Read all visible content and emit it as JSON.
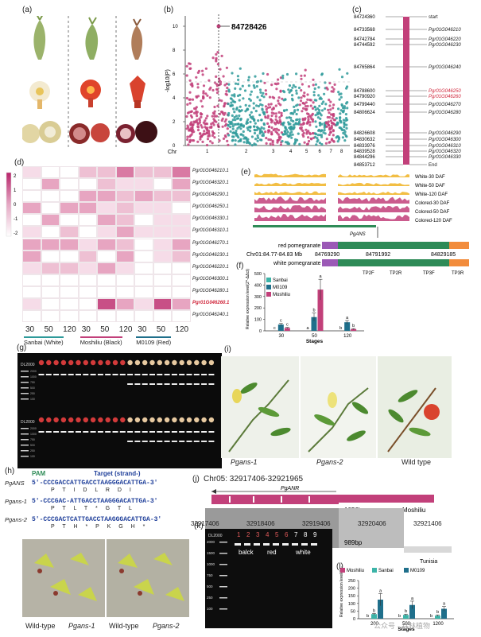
{
  "panels": {
    "a": "(a)",
    "b": "(b)",
    "c": "(c)",
    "d": "(d)",
    "e": "(e)",
    "f": "(f)",
    "g": "(g)",
    "h": "(h)",
    "i": "(i)",
    "j": "(j)",
    "k": "(k)",
    "l": "(l)"
  },
  "manhattan": {
    "peak_label": "84728426",
    "ylabel": "-log10(P)",
    "xlabel": "Chr",
    "yticks": [
      "0",
      "2",
      "4",
      "6",
      "8",
      "10"
    ],
    "chromosomes": [
      "1",
      "2",
      "3",
      "4",
      "5",
      "6",
      "7",
      "8"
    ],
    "colors": {
      "odd": "#c2407a",
      "even": "#2e9a9a"
    }
  },
  "gene_map": {
    "positions": [
      "84724360",
      "84733568",
      "84742784",
      "84744592",
      "84765864",
      "84788600",
      "84790920",
      "84799440",
      "84806624",
      "84826608",
      "84830632",
      "84833976",
      "84839528",
      "84844296",
      "84853712"
    ],
    "labels": [
      "start",
      "Pgr01G046210",
      "Pgr01G046220",
      "Pgr01G046230",
      "Pgr01G046240",
      "Pgr01G046250",
      "Pgr01G046260",
      "Pgr01G046270",
      "Pgr01G046280",
      "Pgr01G046290",
      "Pgr01G046300",
      "Pgr01G046310",
      "Pgr01G046320",
      "Pgr01G046330",
      "End"
    ],
    "red_index": [
      5,
      6
    ]
  },
  "heatmap": {
    "scale_ticks": [
      "2",
      "1",
      "0",
      "-1",
      "-2"
    ],
    "genes": [
      "Pgr01G046210.1",
      "Pgr01G046320.1",
      "Pgr01G046290.1",
      "Pgr01G046250.1",
      "Pgr01G046330.1",
      "Pgr01G046310.1",
      "Pgr01G046270.1",
      "Pgr01G046230.1",
      "Pgr01G046220.1",
      "Pgr01G046300.1",
      "Pgr01G046280.1",
      "Pgr01G046260.1",
      "Pgr01G046240.1"
    ],
    "highlight_gene": "Pgr01G046260.1",
    "stages": [
      "30",
      "50",
      "120",
      "30",
      "50",
      "120",
      "30",
      "50",
      "120"
    ],
    "groups": [
      "Sanbai (White)",
      "Moshiliu (Black)",
      "M0109 (Red)"
    ]
  },
  "tracks": {
    "names": [
      "White-30 DAF",
      "White-50 DAF",
      "White-120 DAF",
      "Colored-30 DAF",
      "Colored-50 DAF",
      "Colored-120 DAF"
    ],
    "gene": "PgANS",
    "red_label": "red pomegranate",
    "white_label": "white pomegranate",
    "coords": "Chr01:84.77-84.83 Mb",
    "pos1": "84769290",
    "pos2": "84791992",
    "pos3": "84829185",
    "primers": [
      "TP2F",
      "TP2R",
      "TP3F",
      "TP3R"
    ]
  },
  "chart_data": [
    {
      "type": "bar",
      "categories": [
        "30",
        "50",
        "120"
      ],
      "series": [
        {
          "name": "Sanbai",
          "values": [
            0,
            0,
            0
          ]
        },
        {
          "name": "M0109",
          "values": [
            55,
            120,
            75
          ]
        },
        {
          "name": "Moshiliu",
          "values": [
            25,
            360,
            15
          ]
        }
      ],
      "errors": [
        [
          0,
          0,
          0
        ],
        [
          10,
          35,
          15
        ],
        [
          5,
          90,
          5
        ]
      ],
      "letters": [
        [
          "c",
          "a",
          "b"
        ],
        [
          "c",
          "b",
          "a"
        ],
        [
          "c",
          "a",
          "b"
        ]
      ],
      "xlabel": "Stages",
      "ylabel": "Relative expression level(2^-ΔΔct)",
      "yticks": [
        "0",
        "100",
        "200",
        "300",
        "400",
        "500"
      ],
      "ylim": [
        0,
        500
      ],
      "colors": [
        "#3cb4a8",
        "#1f6f8b",
        "#c2407a"
      ]
    },
    {
      "type": "bar",
      "categories": [
        "200",
        "500",
        "1200"
      ],
      "series": [
        {
          "name": "Moshiliu",
          "values": [
            0,
            0,
            0
          ]
        },
        {
          "name": "Sanbai",
          "values": [
            30,
            25,
            20
          ]
        },
        {
          "name": "M0109",
          "values": [
            125,
            90,
            65
          ]
        }
      ],
      "errors": [
        [
          0,
          0,
          0
        ],
        [
          5,
          5,
          5
        ],
        [
          40,
          25,
          15
        ]
      ],
      "letters": [
        [
          "b",
          "b",
          "b"
        ],
        [
          "b",
          "b",
          "b"
        ],
        [
          "a",
          "a",
          "a"
        ]
      ],
      "xlabel": "Stages",
      "ylabel": "Relative expression level(2^-ΔΔct)",
      "yticks": [
        "0",
        "50",
        "100",
        "150",
        "200",
        "250"
      ],
      "ylim": [
        0,
        250
      ],
      "colors": [
        "#c2407a",
        "#3cb4a8",
        "#1f6f8b"
      ]
    }
  ],
  "gel_g": {
    "marker": "DL2000",
    "marker_bands": [
      "2000",
      "1000",
      "750",
      "500",
      "250",
      "100"
    ]
  },
  "seq": {
    "pam": "PAM",
    "target": "Target (strand-)",
    "rows": [
      {
        "name": "PgANS",
        "seq": "5'-CCCGACCATTGACCTAAGGGACATTGA-3'",
        "aa": "P T I D L R D I"
      },
      {
        "name": "Pgans-1",
        "seq": "5'-CCCGAC-ATTGACCTAAGGGACATTGA-3'",
        "aa": "P T L T * G T L"
      },
      {
        "name": "Pgans-2",
        "seq": "5'-CCCGACTCATTGACCTAAGGGACATTGA-3'",
        "aa": "P T H * P K G H *"
      }
    ]
  },
  "plants_i": [
    "Pgans-1",
    "Pgans-2",
    "Wild type"
  ],
  "plants_h": [
    "Wild-type",
    "Pgans-1",
    "Wild-type",
    "Pgans-2"
  ],
  "anr": {
    "coords": "Chr05: 32917406-32921965",
    "gene": "PgANR",
    "bp1": "1056bp",
    "bp2": "989bp",
    "var1": "Moshiliu",
    "var2": "Tunisia",
    "ruler": [
      "32917406",
      "32918406",
      "32919406",
      "32920406",
      "32921406"
    ]
  },
  "gel_k": {
    "marker": "DL2000",
    "bands": [
      "2000",
      "1500",
      "1000",
      "750",
      "500",
      "250",
      "100"
    ],
    "lanes": [
      "1",
      "2",
      "3",
      "4",
      "5",
      "6",
      "7",
      "8",
      "9"
    ],
    "groups": [
      "balck",
      "red",
      "white"
    ]
  },
  "watermark": "公众号 · 森林植物"
}
